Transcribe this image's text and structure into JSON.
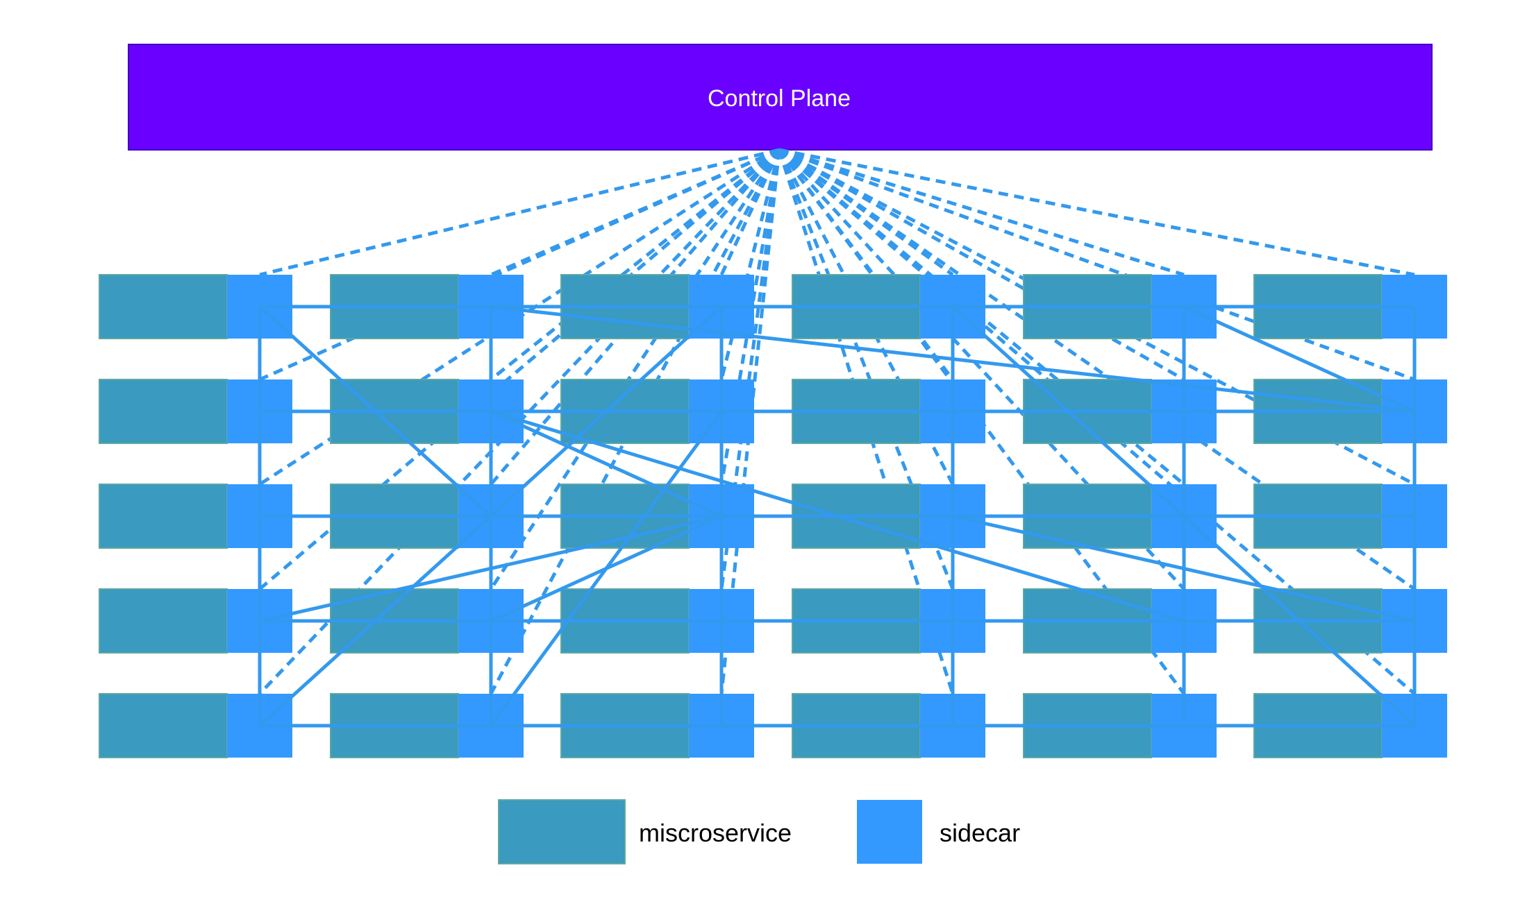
{
  "control_plane": {
    "label": "Control Plane",
    "color": "#6a00ff"
  },
  "colors": {
    "microservice": "#3a9abf",
    "sidecar": "#3399ff",
    "connection": "#3399ee"
  },
  "grid": {
    "rows": 5,
    "columns": 6
  },
  "legend": {
    "microservice_label": "miscroservice",
    "sidecar_label": "sidecar"
  },
  "mesh_links": [
    [
      [
        0,
        0
      ],
      [
        2,
        1
      ]
    ],
    [
      [
        2,
        1
      ],
      [
        0,
        2
      ]
    ],
    [
      [
        1,
        1
      ],
      [
        3,
        4
      ]
    ],
    [
      [
        2,
        1
      ],
      [
        4,
        0
      ]
    ],
    [
      [
        2,
        2
      ],
      [
        3,
        0
      ]
    ],
    [
      [
        2,
        2
      ],
      [
        3,
        1
      ]
    ],
    [
      [
        2,
        3
      ],
      [
        3,
        5
      ]
    ],
    [
      [
        2,
        4
      ],
      [
        4,
        5
      ]
    ],
    [
      [
        0,
        3
      ],
      [
        2,
        4
      ]
    ],
    [
      [
        1,
        1
      ],
      [
        2,
        2
      ]
    ],
    [
      [
        0,
        1
      ],
      [
        1,
        5
      ]
    ],
    [
      [
        0,
        4
      ],
      [
        1,
        5
      ]
    ],
    [
      [
        2,
        0
      ],
      [
        4,
        0
      ]
    ],
    [
      [
        1,
        2
      ],
      [
        4,
        1
      ]
    ]
  ]
}
